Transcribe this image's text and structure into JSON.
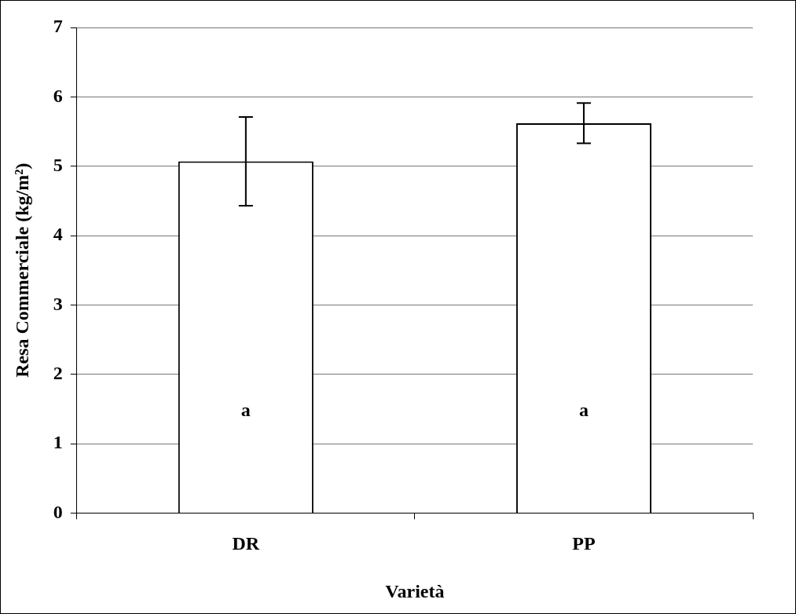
{
  "chart_data": {
    "type": "bar",
    "xlabel": "Varietà",
    "ylabel": "Resa Commerciale (kg/m²)",
    "categories": [
      "DR",
      "PP"
    ],
    "values": [
      5.07,
      5.62
    ],
    "errors": [
      0.64,
      0.29
    ],
    "color": "#ffffff",
    "ylim": [
      0,
      7
    ],
    "yticks": [
      0,
      1,
      2,
      3,
      4,
      5,
      6,
      7
    ],
    "grid": "y",
    "legend": false,
    "annotations": [
      "a",
      "a"
    ]
  }
}
